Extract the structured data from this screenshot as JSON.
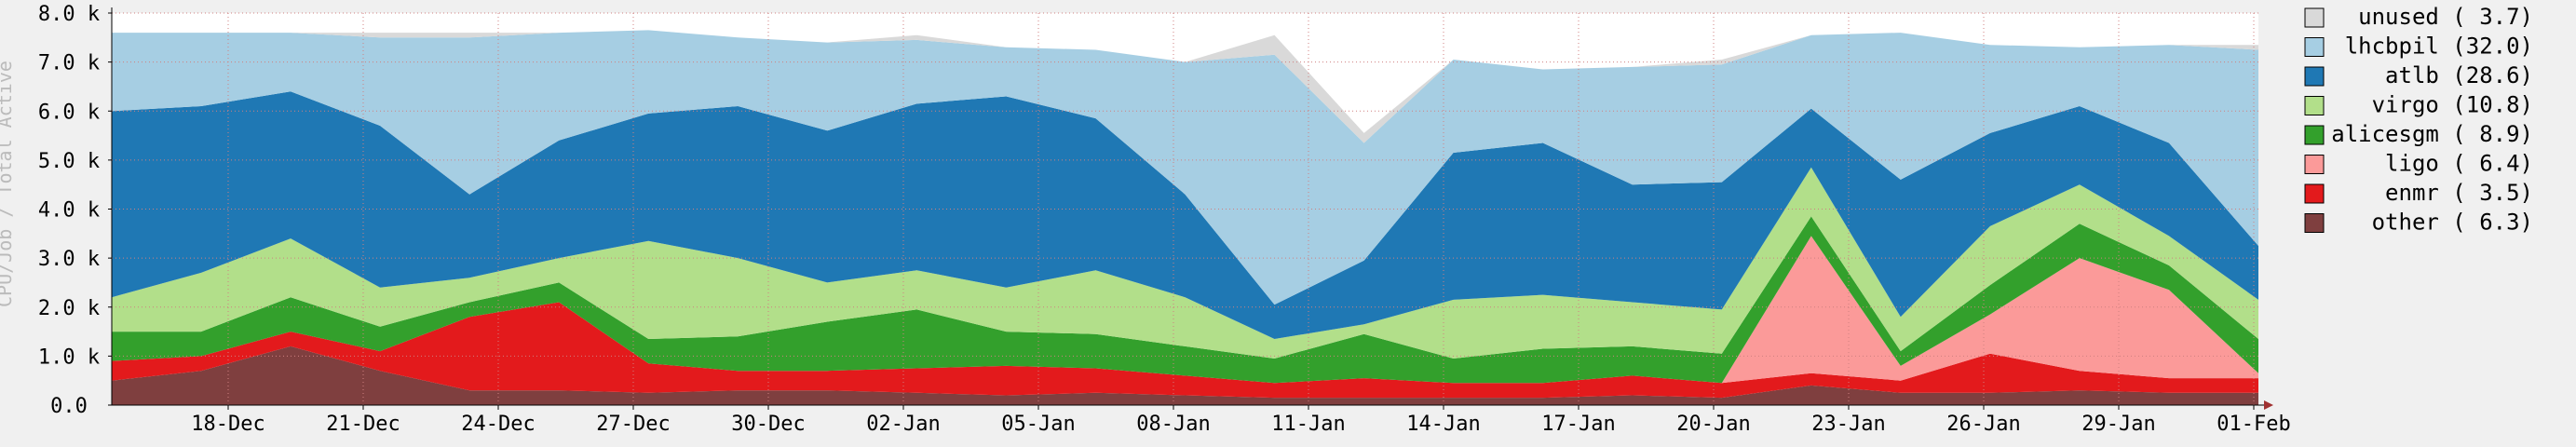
{
  "chart_data": {
    "type": "area",
    "stacked": true,
    "ylabel": "CPU/Job / Total Active",
    "ylim": [
      0,
      8000
    ],
    "y_ticks": [
      "0.0",
      "1.0 k",
      "2.0 k",
      "3.0 k",
      "4.0 k",
      "5.0 k",
      "6.0 k",
      "7.0 k",
      "8.0 k"
    ],
    "x_ticks": [
      "18-Dec",
      "21-Dec",
      "24-Dec",
      "27-Dec",
      "30-Dec",
      "02-Jan",
      "05-Jan",
      "08-Jan",
      "11-Jan",
      "14-Jan",
      "17-Jan",
      "20-Jan",
      "23-Jan",
      "26-Jan",
      "29-Jan",
      "01-Feb"
    ],
    "grid": true,
    "legend_position": "right",
    "x": [
      "15-Dec",
      "17-Dec",
      "19-Dec",
      "21-Dec",
      "23-Dec",
      "25-Dec",
      "27-Dec",
      "29-Dec",
      "31-Dec",
      "02-Jan",
      "04-Jan",
      "06-Jan",
      "08-Jan",
      "10-Jan",
      "12-Jan",
      "14-Jan",
      "16-Jan",
      "18-Jan",
      "20-Jan",
      "22-Jan",
      "24-Jan",
      "26-Jan",
      "28-Jan",
      "30-Jan",
      "01-Feb"
    ],
    "series": [
      {
        "name": "other",
        "legend": "other ( 6.3)",
        "color": "#7f3f3f",
        "values": [
          500,
          700,
          1200,
          700,
          300,
          300,
          250,
          300,
          300,
          250,
          200,
          250,
          200,
          150,
          150,
          150,
          150,
          200,
          150,
          400,
          250,
          250,
          300,
          250,
          250
        ]
      },
      {
        "name": "enmr",
        "legend": "enmr ( 3.5)",
        "color": "#e31a1c",
        "values": [
          400,
          300,
          300,
          400,
          1500,
          1800,
          600,
          400,
          400,
          500,
          600,
          500,
          400,
          300,
          400,
          300,
          300,
          400,
          300,
          250,
          250,
          800,
          400,
          300,
          300
        ]
      },
      {
        "name": "ligo",
        "legend": "ligo ( 6.4)",
        "color": "#fb9a99",
        "values": [
          0,
          0,
          0,
          0,
          0,
          0,
          0,
          0,
          0,
          0,
          0,
          0,
          0,
          0,
          0,
          0,
          0,
          0,
          0,
          2800,
          300,
          800,
          2300,
          1800,
          100
        ]
      },
      {
        "name": "alicesgm",
        "legend": "alicesgm ( 8.9)",
        "color": "#33a02c",
        "values": [
          600,
          500,
          700,
          500,
          300,
          400,
          500,
          700,
          1000,
          1200,
          700,
          700,
          600,
          500,
          900,
          500,
          700,
          600,
          600,
          400,
          300,
          600,
          700,
          500,
          700
        ]
      },
      {
        "name": "virgo",
        "legend": "virgo (10.8)",
        "color": "#b2df8a",
        "values": [
          700,
          1200,
          1200,
          800,
          500,
          500,
          2000,
          1600,
          800,
          800,
          900,
          1300,
          1000,
          400,
          200,
          1200,
          1100,
          900,
          900,
          1000,
          700,
          1200,
          800,
          600,
          800
        ]
      },
      {
        "name": "atlb",
        "legend": "atlb (28.6)",
        "color": "#1f78b4",
        "values": [
          3800,
          3400,
          3000,
          3300,
          1700,
          2400,
          2600,
          3100,
          3100,
          3400,
          3900,
          3100,
          2100,
          700,
          1300,
          3000,
          3100,
          2400,
          2600,
          1200,
          2800,
          1900,
          1600,
          1900,
          1100
        ]
      },
      {
        "name": "lhcbpil",
        "legend": "lhcbpil (32.0)",
        "color": "#a6cee3",
        "values": [
          1600,
          1500,
          1200,
          1800,
          3200,
          2200,
          1700,
          1400,
          1800,
          1300,
          1000,
          1400,
          2700,
          5100,
          2400,
          1900,
          1500,
          2400,
          2400,
          1500,
          3000,
          1800,
          1200,
          2000,
          4000
        ]
      },
      {
        "name": "unused",
        "legend": "unused ( 3.7)",
        "color": "#d9d9d9",
        "values": [
          0,
          0,
          0,
          100,
          100,
          0,
          0,
          0,
          0,
          100,
          0,
          0,
          0,
          400,
          200,
          0,
          0,
          0,
          100,
          0,
          0,
          0,
          0,
          0,
          100
        ]
      }
    ]
  }
}
